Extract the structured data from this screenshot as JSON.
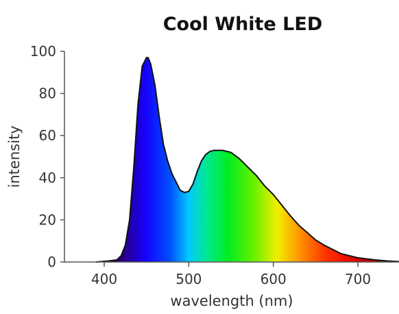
{
  "chart_data": {
    "type": "area",
    "title": "Cool White LED",
    "xlabel": "wavelength (nm)",
    "ylabel": "intensity",
    "xlim": [
      350,
      750
    ],
    "ylim": [
      0,
      100
    ],
    "x_ticks": [
      400,
      500,
      600,
      700
    ],
    "y_ticks": [
      0,
      20,
      40,
      60,
      80,
      100
    ],
    "x_tick_labels": [
      "400",
      "500",
      "600",
      "700"
    ],
    "y_tick_labels": [
      "0",
      "20",
      "40",
      "60",
      "80",
      "100"
    ],
    "grid": false,
    "series": [
      {
        "x": [
          390,
          405,
          415,
          420,
          425,
          430,
          435,
          440,
          445,
          450,
          452,
          455,
          460,
          465,
          470,
          475,
          480,
          485,
          490,
          495,
          500,
          505,
          510,
          515,
          520,
          525,
          530,
          540,
          550,
          560,
          570,
          580,
          590,
          600,
          610,
          620,
          630,
          640,
          650,
          660,
          670,
          680,
          690,
          700,
          710,
          720,
          735,
          750
        ],
        "y": [
          0,
          0.5,
          1,
          3,
          8,
          20,
          45,
          75,
          93,
          97,
          97,
          94,
          84,
          69,
          56,
          48,
          42,
          38,
          34,
          33,
          33.5,
          37,
          43,
          48,
          51,
          52.5,
          53,
          53,
          52,
          49,
          45,
          41,
          36,
          32,
          27,
          22,
          17.5,
          14,
          10.5,
          8,
          6,
          4,
          3,
          2,
          1.5,
          1,
          0.5,
          0.2
        ]
      }
    ]
  }
}
